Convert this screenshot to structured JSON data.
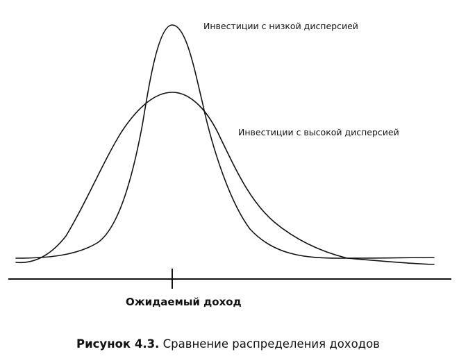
{
  "labels": {
    "low_variance": "Инвестиции с низкой дисперсией",
    "high_variance": "Инвестиции с высокой дисперсией",
    "expected_return": "Ожидаемый доход"
  },
  "caption": {
    "number": "Рисунок 4.3.",
    "text": " Сравнение распределения доходов"
  },
  "colors": {
    "ink": "#111111",
    "background": "#ffffff"
  }
}
